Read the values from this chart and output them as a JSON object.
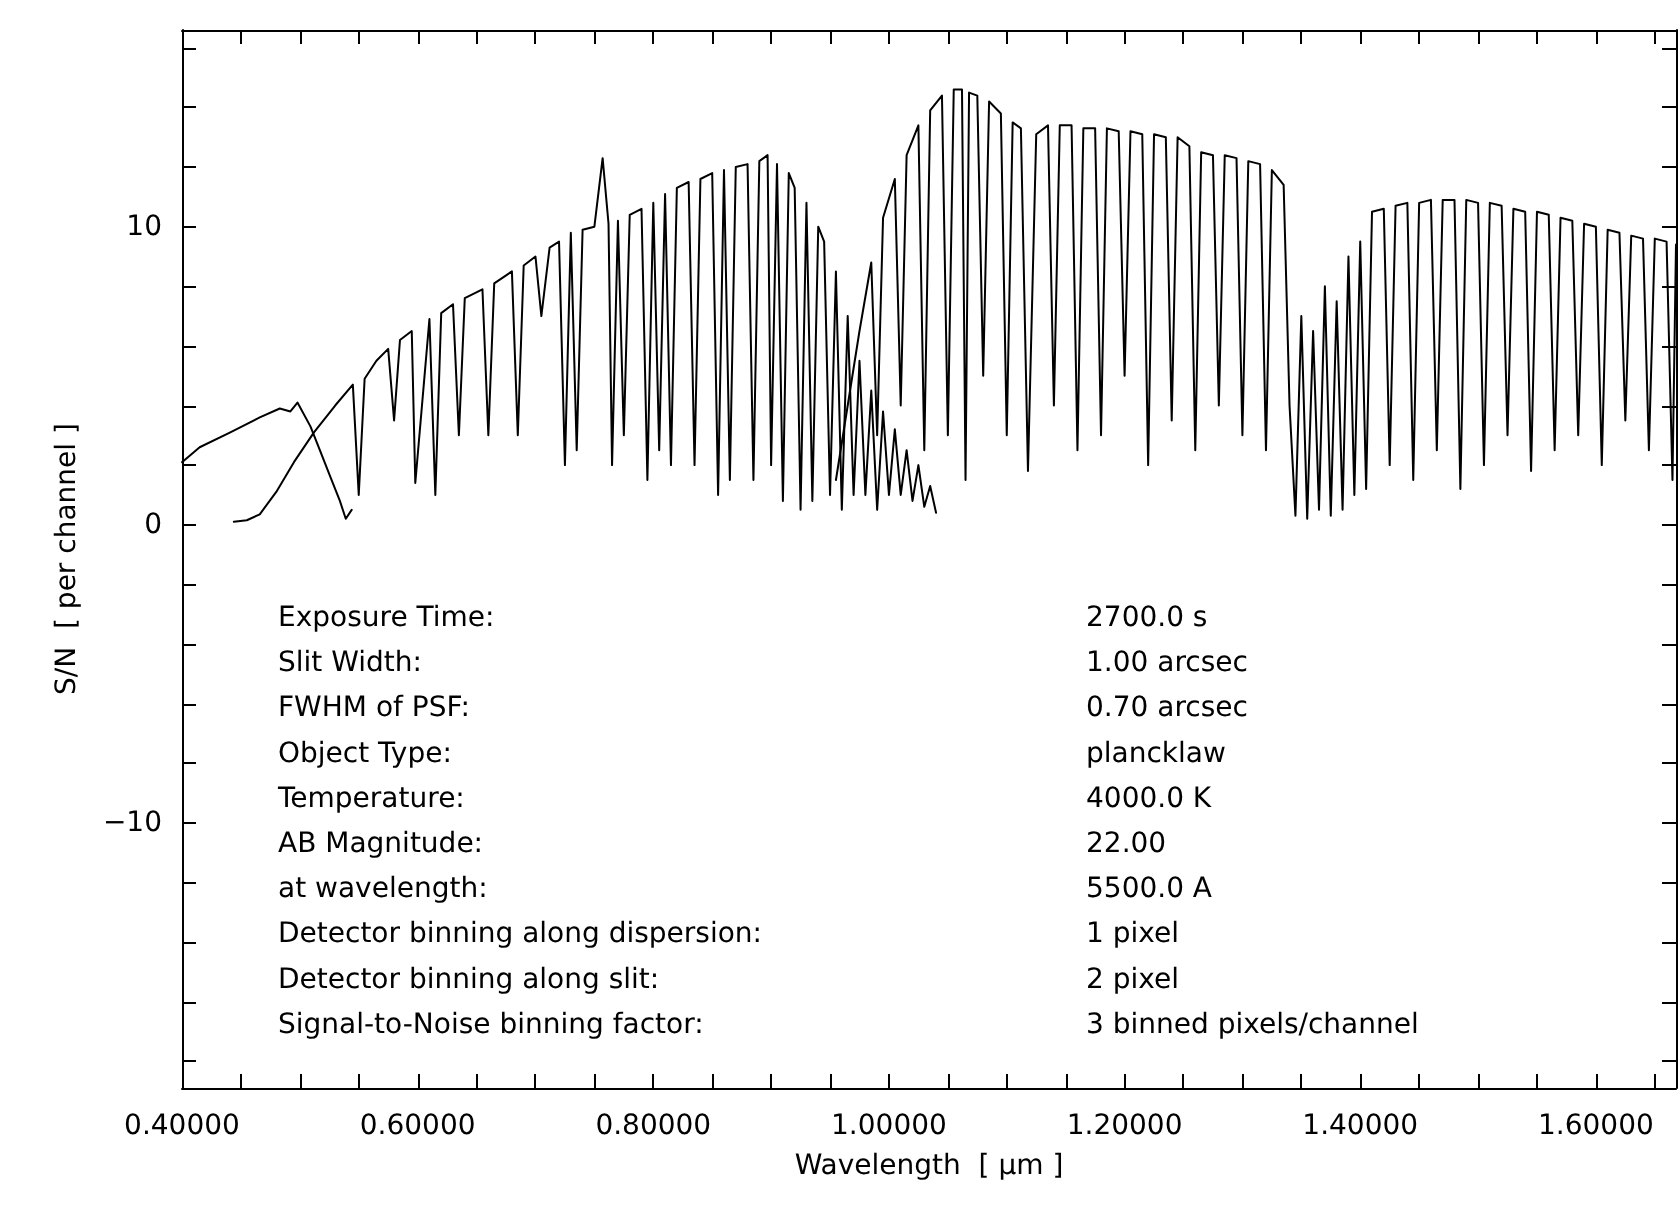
{
  "chart_data": {
    "type": "line",
    "xlabel": "Wavelength  [ μm ]",
    "ylabel": "S/N  [ per channel ]",
    "marker": "none",
    "line_style": "solid",
    "xlim": [
      0.4,
      1.668
    ],
    "ylim": [
      -18.9,
      16.6
    ],
    "xticks": [
      {
        "value": 0.4,
        "label": "0.40000"
      },
      {
        "value": 0.45,
        "label": null
      },
      {
        "value": 0.5,
        "label": null
      },
      {
        "value": 0.55,
        "label": null
      },
      {
        "value": 0.6,
        "label": "0.60000"
      },
      {
        "value": 0.65,
        "label": null
      },
      {
        "value": 0.7,
        "label": null
      },
      {
        "value": 0.75,
        "label": null
      },
      {
        "value": 0.8,
        "label": "0.80000"
      },
      {
        "value": 0.85,
        "label": null
      },
      {
        "value": 0.9,
        "label": null
      },
      {
        "value": 0.95,
        "label": null
      },
      {
        "value": 1.0,
        "label": "1.00000"
      },
      {
        "value": 1.05,
        "label": null
      },
      {
        "value": 1.1,
        "label": null
      },
      {
        "value": 1.15,
        "label": null
      },
      {
        "value": 1.2,
        "label": "1.20000"
      },
      {
        "value": 1.25,
        "label": null
      },
      {
        "value": 1.3,
        "label": null
      },
      {
        "value": 1.35,
        "label": null
      },
      {
        "value": 1.4,
        "label": "1.40000"
      },
      {
        "value": 1.45,
        "label": null
      },
      {
        "value": 1.5,
        "label": null
      },
      {
        "value": 1.55,
        "label": null
      },
      {
        "value": 1.6,
        "label": "1.60000"
      },
      {
        "value": 1.65,
        "label": null
      }
    ],
    "yticks": [
      {
        "value": -18,
        "label": null
      },
      {
        "value": -16,
        "label": null
      },
      {
        "value": -14,
        "label": null
      },
      {
        "value": -12,
        "label": null
      },
      {
        "value": -10,
        "label": "−10"
      },
      {
        "value": -8,
        "label": null
      },
      {
        "value": -6,
        "label": null
      },
      {
        "value": -4,
        "label": null
      },
      {
        "value": -2,
        "label": null
      },
      0,
      {
        "value": 2,
        "label": null
      },
      {
        "value": 4,
        "label": null
      },
      {
        "value": 6,
        "label": null
      },
      {
        "value": 8,
        "label": null
      },
      10,
      {
        "value": 12,
        "label": null
      },
      {
        "value": 14,
        "label": null
      },
      {
        "value": 16,
        "label": null
      }
    ],
    "series": [
      {
        "color": "#000000",
        "x": [
          0.4,
          0.415,
          0.441,
          0.466,
          0.483,
          0.492,
          0.498,
          0.509,
          0.517,
          0.526,
          0.534,
          0.539,
          0.544
        ],
        "values": [
          2.1,
          2.6,
          3.1,
          3.6,
          3.9,
          3.8,
          4.1,
          3.3,
          2.5,
          1.6,
          0.8,
          0.2,
          0.5
        ]
      },
      {
        "color": "#000000",
        "x": [
          0.444,
          0.455,
          0.466,
          0.48,
          0.495,
          0.512,
          0.53,
          0.545,
          0.55,
          0.555,
          0.565,
          0.575,
          0.58,
          0.585,
          0.595,
          0.598,
          0.61,
          0.615,
          0.62,
          0.63,
          0.635,
          0.64,
          0.655,
          0.66,
          0.665,
          0.68,
          0.685,
          0.69,
          0.7,
          0.705,
          0.712,
          0.72,
          0.725,
          0.73,
          0.735,
          0.74,
          0.75,
          0.757,
          0.762,
          0.765,
          0.77,
          0.775,
          0.78,
          0.79,
          0.795,
          0.8,
          0.805,
          0.81,
          0.815,
          0.82,
          0.83,
          0.835,
          0.84,
          0.85,
          0.855,
          0.86,
          0.865,
          0.87,
          0.88,
          0.885,
          0.89,
          0.897,
          0.9,
          0.905,
          0.91,
          0.915,
          0.92,
          0.925,
          0.93,
          0.935,
          0.94,
          0.945,
          0.95,
          0.955,
          0.96,
          0.965,
          0.97,
          0.975,
          0.98,
          0.985,
          0.99,
          0.995,
          1.0,
          1.005,
          1.01,
          1.015,
          1.02,
          1.025,
          1.03,
          1.035,
          1.04
        ],
        "values": [
          0.1,
          0.15,
          0.35,
          1.1,
          2.1,
          3.1,
          4.0,
          4.7,
          1.0,
          4.9,
          5.5,
          5.9,
          3.5,
          6.2,
          6.5,
          1.4,
          6.9,
          1.0,
          7.1,
          7.4,
          3.0,
          7.6,
          7.9,
          3.0,
          8.1,
          8.5,
          3.0,
          8.7,
          9.0,
          7.0,
          9.3,
          9.5,
          2.0,
          9.8,
          2.5,
          9.9,
          10.0,
          12.3,
          10.1,
          2.0,
          10.2,
          3.0,
          10.4,
          10.6,
          1.5,
          10.8,
          2.5,
          11.1,
          2.0,
          11.3,
          11.5,
          2.0,
          11.6,
          11.8,
          1.0,
          11.9,
          1.5,
          12.0,
          12.1,
          1.5,
          12.2,
          12.4,
          2.0,
          12.1,
          0.8,
          11.8,
          11.3,
          0.5,
          10.8,
          0.8,
          10.0,
          9.5,
          1.0,
          8.5,
          0.5,
          7.0,
          1.0,
          5.5,
          1.0,
          4.5,
          0.5,
          3.8,
          1.0,
          3.2,
          1.0,
          2.5,
          0.8,
          2.0,
          0.6,
          1.3,
          0.4
        ]
      },
      {
        "color": "#000000",
        "x": [
          0.955,
          0.965,
          0.975,
          0.985,
          0.99,
          0.995,
          1.005,
          1.01,
          1.015,
          1.025,
          1.03,
          1.035,
          1.045,
          1.05,
          1.055,
          1.062,
          1.065,
          1.068,
          1.075,
          1.08,
          1.085,
          1.095,
          1.1,
          1.105,
          1.112,
          1.118,
          1.125,
          1.135,
          1.14,
          1.145,
          1.155,
          1.16,
          1.165,
          1.175,
          1.18,
          1.185,
          1.195,
          1.2,
          1.205,
          1.215,
          1.22,
          1.225,
          1.235,
          1.24,
          1.245,
          1.255,
          1.26,
          1.265,
          1.275,
          1.28,
          1.285,
          1.295,
          1.3,
          1.305,
          1.315,
          1.32,
          1.325,
          1.335,
          1.34,
          1.345,
          1.35,
          1.355,
          1.36,
          1.365,
          1.37,
          1.375,
          1.38,
          1.385,
          1.39,
          1.395,
          1.4,
          1.405,
          1.41,
          1.42,
          1.425,
          1.43,
          1.44,
          1.445,
          1.45,
          1.46,
          1.465,
          1.47,
          1.48,
          1.485,
          1.49,
          1.5,
          1.505,
          1.51,
          1.52,
          1.525,
          1.53,
          1.54,
          1.545,
          1.55,
          1.56,
          1.565,
          1.57,
          1.58,
          1.585,
          1.59,
          1.6,
          1.605,
          1.61,
          1.62,
          1.625,
          1.63,
          1.64,
          1.645,
          1.65,
          1.66,
          1.665,
          1.668
        ],
        "values": [
          1.5,
          4.0,
          6.5,
          8.8,
          3.0,
          10.3,
          11.6,
          4.0,
          12.4,
          13.4,
          2.5,
          13.9,
          14.4,
          3.0,
          14.6,
          14.6,
          1.5,
          14.5,
          14.4,
          5.0,
          14.2,
          13.8,
          3.0,
          13.5,
          13.3,
          1.8,
          13.1,
          13.4,
          4.0,
          13.4,
          13.4,
          2.5,
          13.3,
          13.3,
          3.0,
          13.3,
          13.2,
          5.0,
          13.2,
          13.1,
          2.0,
          13.1,
          13.0,
          3.5,
          13.0,
          12.7,
          2.5,
          12.5,
          12.4,
          4.0,
          12.4,
          12.3,
          3.0,
          12.2,
          12.1,
          2.5,
          11.9,
          11.4,
          4.0,
          0.3,
          7.0,
          0.2,
          6.5,
          0.5,
          8.0,
          0.3,
          7.5,
          0.5,
          9.0,
          1.0,
          9.5,
          1.2,
          10.5,
          10.6,
          2.0,
          10.7,
          10.8,
          1.5,
          10.8,
          10.9,
          2.5,
          10.9,
          10.9,
          1.2,
          10.9,
          10.8,
          2.0,
          10.8,
          10.7,
          3.0,
          10.6,
          10.5,
          1.8,
          10.5,
          10.4,
          2.5,
          10.3,
          10.2,
          3.0,
          10.1,
          10.0,
          2.0,
          9.9,
          9.8,
          3.5,
          9.7,
          9.6,
          2.5,
          9.6,
          9.5,
          1.5,
          9.4
        ]
      }
    ],
    "annotations": [
      "Exposure Time:",
      "2700.0 s",
      "Slit Width:",
      "1.00 arcsec",
      "FWHM of PSF:",
      "0.70 arcsec",
      "Object Type:",
      "plancklaw",
      "Temperature:",
      "4000.0 K",
      "AB Magnitude:",
      "22.00",
      "at wavelength:",
      "5500.0 A",
      "Detector binning along dispersion:",
      "1 pixel",
      "Detector binning along slit:",
      "2 pixel",
      "Signal-to-Noise binning factor:",
      "3 binned pixels/channel"
    ]
  }
}
